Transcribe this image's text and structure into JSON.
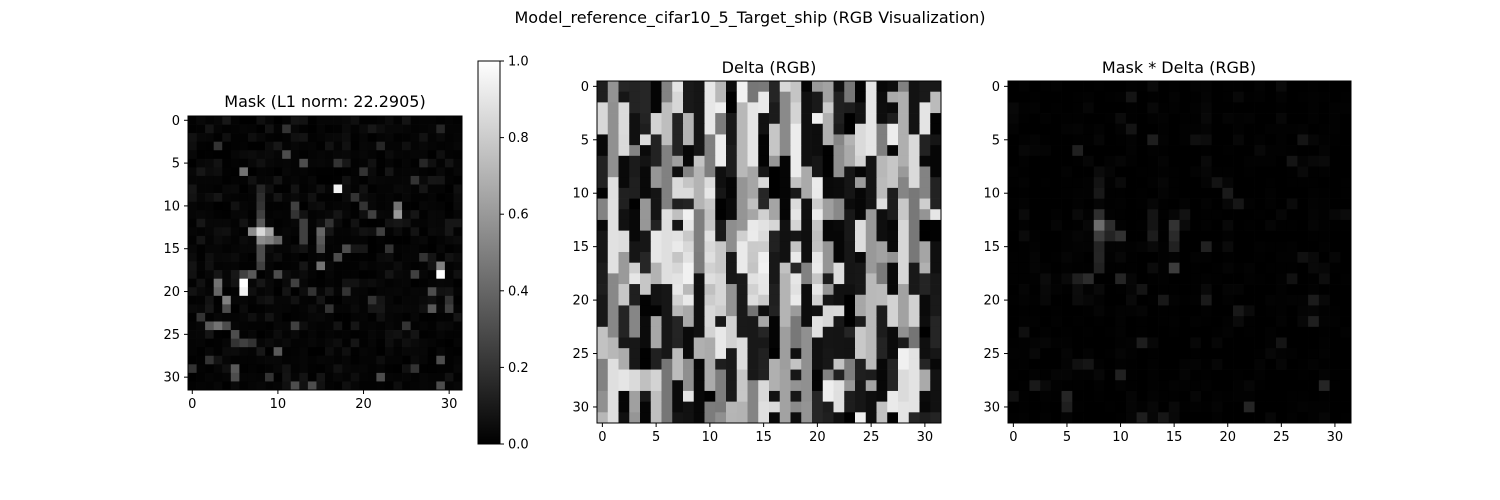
{
  "figure": {
    "suptitle": "Model_reference_cifar10_5_Target_ship (RGB Visualization)"
  },
  "chart_data": [
    {
      "type": "heatmap",
      "title": "Mask (L1 norm: 22.2905)",
      "grid_size": [
        32,
        32
      ],
      "colormap": "gray",
      "xticks": [
        0,
        10,
        20,
        30
      ],
      "yticks": [
        0,
        5,
        10,
        15,
        20,
        25,
        30
      ],
      "xlim": [
        -0.5,
        31.5
      ],
      "ylim": [
        31.5,
        -0.5
      ],
      "colorbar": {
        "range": [
          0.0,
          1.0
        ],
        "ticks": [
          "0.0",
          "0.2",
          "0.4",
          "0.6",
          "0.8",
          "1.0"
        ]
      },
      "cells": [
        [
          8,
          13,
          0.85
        ],
        [
          9,
          13,
          0.65
        ],
        [
          7,
          13,
          0.55
        ],
        [
          8,
          14,
          0.55
        ],
        [
          9,
          14,
          0.5
        ],
        [
          10,
          14,
          0.4
        ],
        [
          8,
          12,
          0.35
        ],
        [
          8,
          11,
          0.25
        ],
        [
          8,
          10,
          0.2
        ],
        [
          8,
          9,
          0.18
        ],
        [
          8,
          8,
          0.15
        ],
        [
          8,
          15,
          0.3
        ],
        [
          8,
          16,
          0.3
        ],
        [
          8,
          17,
          0.25
        ],
        [
          17,
          8,
          0.95
        ],
        [
          6,
          19,
          1.0
        ],
        [
          6,
          20,
          0.95
        ],
        [
          29,
          18,
          1.0
        ],
        [
          29,
          17,
          0.5
        ],
        [
          24,
          11,
          0.6
        ],
        [
          24,
          10,
          0.45
        ],
        [
          15,
          13,
          0.4
        ],
        [
          15,
          14,
          0.35
        ],
        [
          15,
          15,
          0.3
        ],
        [
          15,
          17,
          0.45
        ],
        [
          3,
          19,
          0.45
        ],
        [
          3,
          20,
          0.4
        ],
        [
          4,
          21,
          0.5
        ],
        [
          2,
          24,
          0.35
        ],
        [
          3,
          24,
          0.45
        ],
        [
          4,
          24,
          0.3
        ],
        [
          5,
          25,
          0.3
        ],
        [
          5,
          26,
          0.2
        ],
        [
          6,
          26,
          0.25
        ],
        [
          7,
          26,
          0.2
        ],
        [
          10,
          27,
          0.35
        ],
        [
          22,
          30,
          0.3
        ],
        [
          29,
          31,
          0.3
        ],
        [
          29,
          28,
          0.3
        ],
        [
          12,
          10,
          0.25
        ],
        [
          12,
          11,
          0.2
        ],
        [
          13,
          13,
          0.25
        ],
        [
          13,
          14,
          0.25
        ],
        [
          6,
          6,
          0.45
        ],
        [
          11,
          4,
          0.3
        ],
        [
          11,
          1,
          0.2
        ],
        [
          13,
          5,
          0.3
        ],
        [
          13,
          12,
          0.25
        ],
        [
          17,
          5,
          0.2
        ],
        [
          19,
          9,
          0.2
        ],
        [
          20,
          10,
          0.2
        ],
        [
          16,
          12,
          0.2
        ],
        [
          17,
          16,
          0.3
        ],
        [
          18,
          15,
          0.3
        ],
        [
          21,
          11,
          0.25
        ],
        [
          22,
          13,
          0.25
        ],
        [
          23,
          15,
          0.2
        ],
        [
          27,
          16,
          0.2
        ],
        [
          26,
          18,
          0.25
        ],
        [
          28,
          20,
          0.3
        ],
        [
          28,
          22,
          0.35
        ],
        [
          21,
          21,
          0.2
        ],
        [
          14,
          20,
          0.2
        ],
        [
          12,
          19,
          0.25
        ],
        [
          10,
          18,
          0.3
        ],
        [
          7,
          18,
          0.35
        ],
        [
          6,
          18,
          0.25
        ],
        [
          4,
          22,
          0.3
        ],
        [
          1,
          23,
          0.2
        ],
        [
          12,
          24,
          0.25
        ],
        [
          16,
          22,
          0.2
        ],
        [
          18,
          20,
          0.2
        ],
        [
          25,
          24,
          0.2
        ],
        [
          26,
          29,
          0.2
        ],
        [
          12,
          31,
          0.3
        ],
        [
          14,
          31,
          0.3
        ],
        [
          9,
          30,
          0.2
        ],
        [
          5,
          29,
          0.35
        ],
        [
          5,
          30,
          0.3
        ],
        [
          2,
          28,
          0.2
        ],
        [
          0,
          29,
          0.2
        ],
        [
          30,
          22,
          0.25
        ],
        [
          30,
          21,
          0.2
        ],
        [
          26,
          7,
          0.2
        ],
        [
          20,
          6,
          0.2
        ],
        [
          22,
          3,
          0.15
        ],
        [
          27,
          5,
          0.15
        ],
        [
          29,
          1,
          0.15
        ],
        [
          3,
          3,
          0.2
        ]
      ]
    },
    {
      "type": "heatmap",
      "title": "Delta (RGB)",
      "grid_size": [
        32,
        32
      ],
      "colormap": "gray",
      "xticks": [
        0,
        5,
        10,
        15,
        20,
        25,
        30
      ],
      "yticks": [
        0,
        5,
        10,
        15,
        20,
        25,
        30
      ],
      "xlim": [
        -0.5,
        31.5
      ],
      "ylim": [
        31.5,
        -0.5
      ],
      "pattern_seed": 5
    },
    {
      "type": "heatmap",
      "title": "Mask * Delta (RGB)",
      "grid_size": [
        32,
        32
      ],
      "colormap": "gray",
      "xticks": [
        0,
        5,
        10,
        15,
        20,
        25,
        30
      ],
      "yticks": [
        0,
        5,
        10,
        15,
        20,
        25,
        30
      ],
      "xlim": [
        -0.5,
        31.5
      ],
      "ylim": [
        31.5,
        -0.5
      ]
    }
  ]
}
